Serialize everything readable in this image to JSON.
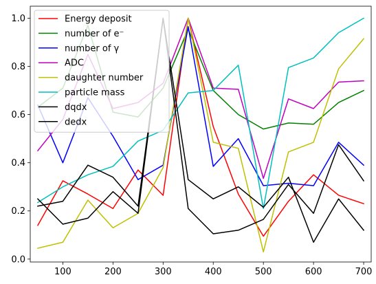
{
  "chart_data": {
    "type": "line",
    "x": [
      50,
      100,
      150,
      200,
      250,
      300,
      350,
      400,
      450,
      500,
      550,
      600,
      650,
      700
    ],
    "xlim": [
      35,
      715
    ],
    "ylim": [
      -0.012,
      1.05
    ],
    "xticks": [
      "100",
      "200",
      "300",
      "400",
      "500",
      "600",
      "700"
    ],
    "yticks": [
      "0.0",
      "0.2",
      "0.4",
      "0.6",
      "0.8",
      "1.0"
    ],
    "grid": false,
    "legend_position": "top-left",
    "series": [
      {
        "name": "Energy deposit",
        "color": "#ff0000",
        "values": [
          0.14,
          0.325,
          0.27,
          0.21,
          0.37,
          0.265,
          1.0,
          0.55,
          0.27,
          0.095,
          0.24,
          0.35,
          0.265,
          0.23
        ]
      },
      {
        "name": "number of e⁻",
        "color": "#008000",
        "values": [
          0.63,
          0.71,
          0.97,
          0.61,
          0.59,
          0.71,
          0.955,
          0.7,
          0.6,
          0.54,
          0.565,
          0.56,
          0.65,
          0.7
        ]
      },
      {
        "name": "number of γ",
        "color": "#0000ff",
        "values": [
          0.64,
          0.4,
          0.67,
          0.51,
          0.33,
          0.39,
          0.965,
          0.385,
          0.5,
          0.305,
          0.315,
          0.305,
          0.485,
          0.39
        ]
      },
      {
        "name": "ADC",
        "color": "#bf00bf",
        "values": [
          0.45,
          0.58,
          0.85,
          0.625,
          0.65,
          0.73,
          1.0,
          0.71,
          0.705,
          0.335,
          0.665,
          0.625,
          0.735,
          0.74
        ]
      },
      {
        "name": "daughter number",
        "color": "#bfbf00",
        "values": [
          0.045,
          0.07,
          0.245,
          0.13,
          0.19,
          0.38,
          1.0,
          0.485,
          0.46,
          0.03,
          0.445,
          0.485,
          0.79,
          0.915
        ]
      },
      {
        "name": "particle mass",
        "color": "#00bfbf",
        "values": [
          0.235,
          0.3,
          0.35,
          0.385,
          0.49,
          0.535,
          0.69,
          0.7,
          0.805,
          0.21,
          0.795,
          0.835,
          0.94,
          1.0
        ]
      },
      {
        "name": "dqdx",
        "color": "#000000",
        "values": [
          0.25,
          0.145,
          0.17,
          0.28,
          0.19,
          1.0,
          0.33,
          0.25,
          0.3,
          0.215,
          0.34,
          0.07,
          0.25,
          0.12
        ]
      },
      {
        "name": "dedx",
        "color": "#000000",
        "values": [
          0.22,
          0.24,
          0.39,
          0.34,
          0.22,
          1.0,
          0.21,
          0.105,
          0.12,
          0.165,
          0.31,
          0.19,
          0.475,
          0.325
        ]
      }
    ]
  }
}
